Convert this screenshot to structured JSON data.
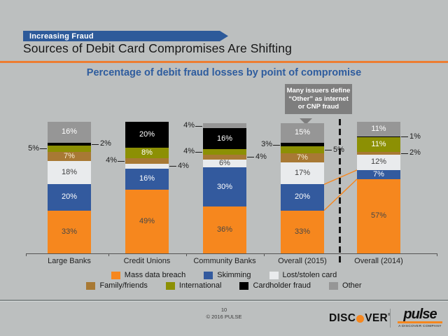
{
  "colors": {
    "background": "#BCBFBF",
    "banner_blue": "#2D5A9A",
    "subtitle_blue": "#2E5C9E",
    "accent_orange": "#ED7D31",
    "callout_gray": "#7E7E7E",
    "axis_gray": "#555555"
  },
  "header": {
    "kicker": "Increasing Fraud",
    "title": "Sources of Debit Card Compromises Are Shifting",
    "subtitle": "Percentage of debit fraud losses by point of compromise"
  },
  "callout": {
    "text": "Many issuers define “Other” as internet or CNP fraud"
  },
  "chart_data": {
    "type": "bar",
    "stacked": true,
    "unit": "%",
    "categories": [
      "Large Banks",
      "Credit Unions",
      "Community Banks",
      "Overall (2015)",
      "Overall (2014)"
    ],
    "series": [
      {
        "name": "Mass data breach",
        "color": "#F6871E",
        "text_color": "#474747",
        "values": [
          33,
          49,
          36,
          33,
          57
        ]
      },
      {
        "name": "Skimming",
        "color": "#335A9E",
        "text_color": "#FFFFFF",
        "values": [
          20,
          16,
          30,
          20,
          7
        ]
      },
      {
        "name": "Lost/stolen card",
        "color": "#E9EBED",
        "text_color": "#3F3F3F",
        "values": [
          18,
          4,
          6,
          17,
          12
        ]
      },
      {
        "name": "Family/friends",
        "color": "#A87934",
        "text_color": "#F6EED6",
        "values": [
          7,
          4,
          4,
          7,
          2
        ]
      },
      {
        "name": "International",
        "color": "#8C9004",
        "text_color": "#FFFFFF",
        "values": [
          5,
          8,
          4,
          5,
          11
        ]
      },
      {
        "name": "Cardholder fraud",
        "color": "#000000",
        "text_color": "#FFFFFF",
        "values": [
          2,
          20,
          16,
          3,
          1
        ]
      },
      {
        "name": "Other",
        "color": "#969696",
        "text_color": "#FFFFFF",
        "values": [
          16,
          0,
          4,
          15,
          11
        ]
      }
    ],
    "outside_labels": [
      {
        "category": 0,
        "series": "International",
        "side": "left"
      },
      {
        "category": 0,
        "series": "Cardholder fraud",
        "side": "right"
      },
      {
        "category": 1,
        "series": "Family/friends",
        "side": "left"
      },
      {
        "category": 1,
        "series": "Lost/stolen card",
        "side": "right"
      },
      {
        "category": 2,
        "series": "Other",
        "side": "left"
      },
      {
        "category": 2,
        "series": "International",
        "side": "left"
      },
      {
        "category": 2,
        "series": "Family/friends",
        "side": "right"
      },
      {
        "category": 3,
        "series": "Cardholder fraud",
        "side": "left"
      },
      {
        "category": 3,
        "series": "International",
        "side": "right"
      },
      {
        "category": 4,
        "series": "Cardholder fraud",
        "side": "right"
      },
      {
        "category": 4,
        "series": "Family/friends",
        "side": "right"
      }
    ],
    "connectors": [
      {
        "from_category": 3,
        "to_category": 4,
        "through_series": "Skimming"
      },
      {
        "from_category": 3,
        "to_category": 4,
        "through_series": "Mass data breach"
      }
    ],
    "divider_after_category": 3,
    "legend_rows": [
      3,
      4
    ],
    "legend_position": "bottom",
    "grid": false,
    "ylim": [
      0,
      101
    ]
  },
  "footer": {
    "page_number": "10",
    "copyright": "© 2016 PULSE"
  },
  "logos": {
    "discover_pre": "DISC",
    "discover_post": "VER",
    "discover_reg": "®",
    "pulse_word": "pulse",
    "pulse_tagline": "A DISCOVER COMPANY"
  }
}
